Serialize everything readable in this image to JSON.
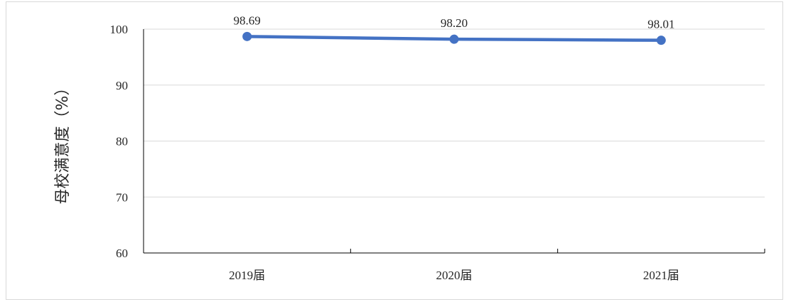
{
  "chart_data": {
    "type": "line",
    "categories": [
      "2019届",
      "2020届",
      "2021届"
    ],
    "series": [
      {
        "values": [
          98.69,
          98.2,
          98.01
        ],
        "color": "#4472c4"
      }
    ],
    "data_labels": [
      "98.69",
      "98.20",
      "98.01"
    ],
    "ylabel": "母校满意度（%）",
    "ylim": [
      60,
      100
    ],
    "yticks": [
      60,
      70,
      80,
      90,
      100
    ],
    "grid": true
  }
}
